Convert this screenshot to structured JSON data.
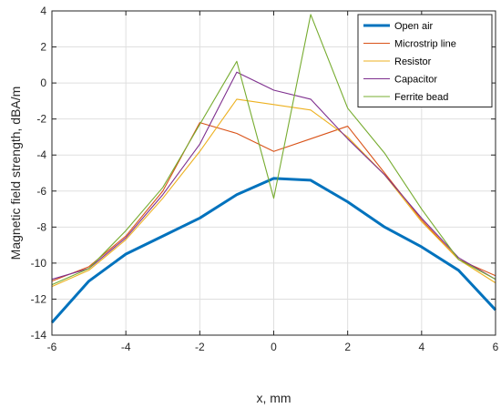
{
  "chart_data": {
    "type": "line",
    "xlabel": "x, mm",
    "ylabel": "Magnetic field strength, dBA/m",
    "xlim": [
      -6,
      6
    ],
    "ylim": [
      -14,
      4
    ],
    "xticks": [
      "-6",
      "-4",
      "-2",
      "0",
      "2",
      "4",
      "6"
    ],
    "yticks": [
      "-14",
      "-12",
      "-10",
      "-8",
      "-6",
      "-4",
      "-2",
      "0",
      "2",
      "4"
    ],
    "grid": true,
    "legend_position": "top-right",
    "x": [
      -6,
      -5,
      -4,
      -3,
      -2,
      -1,
      0,
      1,
      2,
      3,
      4,
      5,
      6
    ],
    "series": [
      {
        "name": "Open air",
        "color": "#0072BD",
        "values": [
          -13.3,
          -11.0,
          -9.5,
          -8.5,
          -7.5,
          -6.2,
          -5.3,
          -5.4,
          -6.6,
          -8.0,
          -9.1,
          -10.4,
          -12.6
        ]
      },
      {
        "name": "Microstrip line",
        "color": "#D95319",
        "values": [
          -11.0,
          -10.2,
          -8.5,
          -6.0,
          -2.2,
          -2.8,
          -3.8,
          -3.1,
          -2.4,
          -5.0,
          -7.6,
          -9.8,
          -10.7
        ]
      },
      {
        "name": "Resistor",
        "color": "#EDB120",
        "values": [
          -11.3,
          -10.4,
          -8.7,
          -6.4,
          -3.8,
          -0.9,
          -1.2,
          -1.5,
          -3.0,
          -5.1,
          -7.7,
          -9.8,
          -11.1
        ]
      },
      {
        "name": "Capacitor",
        "color": "#7E2F8E",
        "values": [
          -10.9,
          -10.3,
          -8.6,
          -6.2,
          -3.4,
          0.6,
          -0.4,
          -0.9,
          -3.1,
          -5.1,
          -7.5,
          -9.7,
          -10.9
        ]
      },
      {
        "name": "Ferrite bead",
        "color": "#77AC30",
        "values": [
          -11.2,
          -10.3,
          -8.2,
          -5.8,
          -2.3,
          1.2,
          -6.4,
          3.8,
          -1.4,
          -3.9,
          -7.0,
          -9.8,
          -10.9
        ]
      }
    ]
  }
}
